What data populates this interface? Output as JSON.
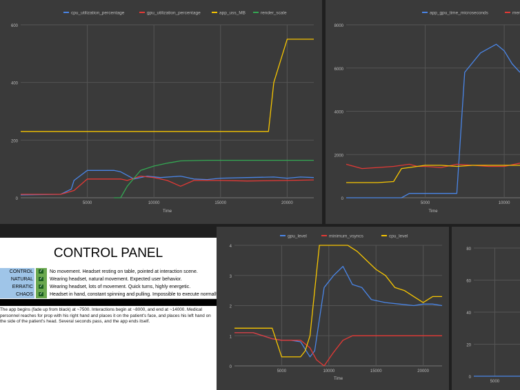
{
  "chart_data": [
    {
      "type": "line",
      "xlabel": "Time",
      "ylabel": "",
      "xlim": [
        0,
        22000
      ],
      "ylim": [
        0,
        600
      ],
      "x_ticks": [
        5000,
        10000,
        15000,
        20000
      ],
      "y_ticks": [
        0,
        200,
        400,
        600
      ],
      "legend_position": "top",
      "grid": true,
      "series": [
        {
          "name": "cpu_utilization_percentage",
          "color": "#4a86e8",
          "x": [
            0,
            3000,
            3800,
            4000,
            5000,
            7000,
            7500,
            8500,
            9500,
            10500,
            12000,
            13000,
            14000,
            15000,
            17000,
            19000,
            20000,
            21000,
            22000
          ],
          "y": [
            10,
            12,
            30,
            60,
            95,
            95,
            90,
            65,
            75,
            70,
            75,
            65,
            63,
            68,
            70,
            72,
            68,
            72,
            70
          ]
        },
        {
          "name": "gpu_utilization_percentage",
          "color": "#e53935",
          "x": [
            0,
            3000,
            4000,
            5000,
            7000,
            7500,
            8000,
            9000,
            10000,
            11000,
            12000,
            13000,
            15000,
            17000,
            20000,
            22000
          ],
          "y": [
            12,
            12,
            25,
            65,
            65,
            65,
            60,
            75,
            70,
            60,
            40,
            60,
            60,
            58,
            60,
            62
          ]
        },
        {
          "name": "app_uss_MB",
          "color": "#f9c700",
          "x": [
            0,
            18000,
            18600,
            19000,
            20000,
            22000
          ],
          "y": [
            230,
            230,
            230,
            400,
            550,
            550
          ]
        },
        {
          "name": "render_scale",
          "color": "#34a853",
          "x": [
            7000,
            7500,
            8000,
            9000,
            10000,
            11000,
            12000,
            14000,
            16000,
            18000,
            20000,
            22000
          ],
          "y": [
            0,
            0,
            40,
            95,
            110,
            120,
            128,
            130,
            130,
            130,
            130,
            130
          ]
        }
      ]
    },
    {
      "type": "line",
      "xlabel": "Time",
      "ylabel": "",
      "xlim": [
        0,
        11000
      ],
      "ylim": [
        0,
        8000
      ],
      "x_ticks": [
        5000,
        10000
      ],
      "y_ticks": [
        0,
        2000,
        4000,
        6000,
        8000
      ],
      "legend_position": "top",
      "grid": true,
      "series": [
        {
          "name": "app_gpu_time_microseconds",
          "color": "#4a86e8",
          "x": [
            0,
            3500,
            4000,
            6500,
            7000,
            7500,
            8500,
            9500,
            10000,
            10500,
            11000
          ],
          "y": [
            0,
            0,
            200,
            200,
            200,
            5800,
            6700,
            7100,
            6800,
            6200,
            5800
          ]
        },
        {
          "name": "mem_freq",
          "color": "#e53935",
          "x": [
            0,
            500,
            1000,
            2000,
            3000,
            4000,
            4500,
            5000,
            6000,
            7000,
            8000,
            9000,
            10000,
            11000
          ],
          "y": [
            1550,
            1450,
            1350,
            1400,
            1450,
            1550,
            1450,
            1450,
            1400,
            1550,
            1500,
            1450,
            1450,
            1600
          ]
        },
        {
          "name": "",
          "color": "#f9c700",
          "x": [
            0,
            2000,
            3000,
            3500,
            4000,
            5000,
            6000,
            7000,
            8000,
            9000,
            10000,
            11000
          ],
          "y": [
            700,
            700,
            750,
            1350,
            1400,
            1500,
            1500,
            1450,
            1500,
            1500,
            1500,
            1500
          ]
        }
      ]
    },
    {
      "type": "line",
      "xlabel": "Time",
      "ylabel": "",
      "xlim": [
        0,
        22000
      ],
      "ylim": [
        0,
        4
      ],
      "x_ticks": [
        5000,
        10000,
        15000,
        20000
      ],
      "y_ticks": [
        0,
        1,
        2,
        3,
        4
      ],
      "legend_position": "top",
      "grid": true,
      "series": [
        {
          "name": "gpu_level",
          "color": "#4a86e8",
          "x": [
            0,
            2000,
            4000,
            5000,
            6000,
            7000,
            8000,
            8500,
            9500,
            10500,
            11500,
            12500,
            13500,
            14500,
            16000,
            17500,
            19000,
            20000,
            21000,
            22000
          ],
          "y": [
            1.1,
            1.1,
            0.9,
            0.85,
            0.85,
            0.8,
            0.3,
            0.5,
            2.6,
            3.0,
            3.3,
            2.7,
            2.6,
            2.2,
            2.1,
            2.05,
            2.0,
            2.05,
            2.05,
            2.0
          ]
        },
        {
          "name": "minimum_vsyncs",
          "color": "#e53935",
          "x": [
            0,
            2000,
            4000,
            5000,
            7000,
            8000,
            8700,
            9500,
            10500,
            11500,
            12500,
            14000,
            16000,
            18000,
            20000,
            22000
          ],
          "y": [
            1.1,
            1.1,
            0.9,
            0.85,
            0.85,
            0.6,
            0.2,
            0.0,
            0.45,
            0.85,
            1.0,
            1.0,
            1.0,
            1.0,
            1.0,
            1.0
          ]
        },
        {
          "name": "cpu_level",
          "color": "#f9c700",
          "x": [
            0,
            4000,
            5000,
            6000,
            7000,
            7500,
            8000,
            8500,
            9000,
            12000,
            13000,
            14000,
            15000,
            16000,
            17000,
            18000,
            19000,
            20000,
            21000,
            22000
          ],
          "y": [
            1.25,
            1.25,
            0.3,
            0.3,
            0.3,
            0.5,
            1.0,
            2.5,
            4.0,
            4.0,
            3.8,
            3.5,
            3.2,
            3.0,
            2.6,
            2.5,
            2.3,
            2.1,
            2.3,
            2.3
          ]
        }
      ]
    },
    {
      "type": "line",
      "xlabel": "",
      "ylabel": "",
      "xlim": [
        0,
        11000
      ],
      "ylim": [
        0,
        80
      ],
      "x_ticks": [
        5000
      ],
      "y_ticks": [
        0,
        20,
        40,
        60,
        80
      ],
      "legend_position": "top",
      "grid": true,
      "series": [
        {
          "name": "",
          "color": "#4a86e8",
          "x": [
            0,
            11000
          ],
          "y": [
            0,
            0
          ]
        }
      ]
    }
  ],
  "control_panel": {
    "title": "CONTROL PANEL",
    "check_mark": "✓",
    "rows": [
      {
        "name": "CONTROL",
        "desc": "No movement. Headset resting on table, pointed at interaction scene."
      },
      {
        "name": "NATURAL",
        "desc": "Wearing headset, natural movement. Expected user behavior."
      },
      {
        "name": "ERRATIC",
        "desc": "Wearing headset, lots of movement. Quick turns, highly energetic."
      },
      {
        "name": "CHAOS",
        "desc": "Headset in hand, constant spinning and pulling. Impossible to execute normally"
      }
    ],
    "description": "The app begins (fade up from black) at ~7500. Interactions begin at ~8000, and end at ~14000. Medical personnel reaches for prop with his right hand and places it on the patient's face, and places his left hand on the side of the patient's head. Several seconds pass, and the app ends itself."
  },
  "colors": {
    "panel_bg": "#3a3a3a",
    "grid": "#555555",
    "text": "#bdbdbd"
  }
}
